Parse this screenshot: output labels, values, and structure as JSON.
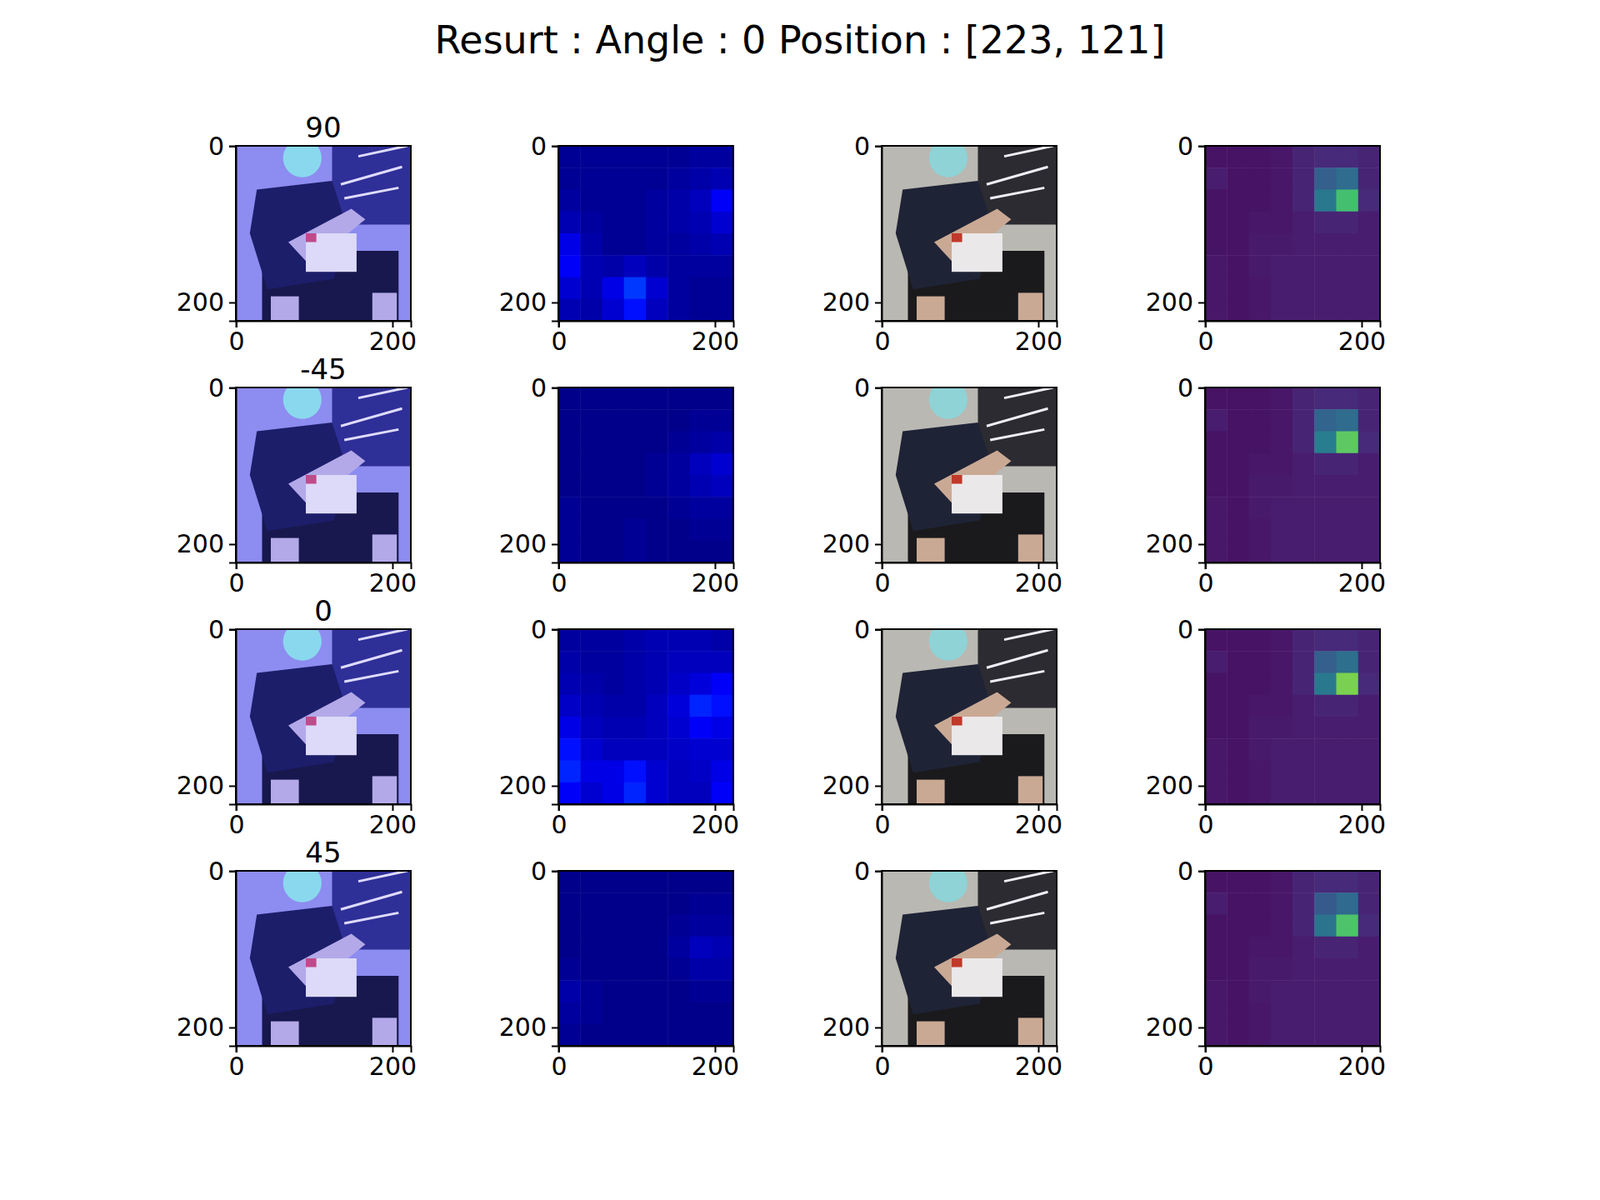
{
  "title": "Resurt : Angle : 0 Position : [223, 121]",
  "chart_data": [
    {
      "type": "image",
      "title": "90",
      "color": "tinted",
      "xlim": [
        -0.5,
        223.5
      ],
      "ylim": [
        223.5,
        -0.5
      ],
      "xticks": [
        0,
        200
      ],
      "yticks": [
        0,
        200
      ]
    },
    {
      "type": "heatmap",
      "color": "jet",
      "zlim": [
        0,
        1
      ],
      "xlim": [
        -0.5,
        223.5
      ],
      "ylim": [
        223.5,
        -0.5
      ],
      "xticks": [
        0,
        200
      ],
      "yticks": [
        0,
        200
      ],
      "cells": [
        [
          0.02,
          0.02,
          0.02,
          0.02,
          0.02,
          0.02,
          0.03,
          0.03
        ],
        [
          0.02,
          0.02,
          0.02,
          0.02,
          0.02,
          0.03,
          0.04,
          0.05
        ],
        [
          0.03,
          0.02,
          0.02,
          0.02,
          0.03,
          0.04,
          0.06,
          0.12
        ],
        [
          0.05,
          0.03,
          0.02,
          0.02,
          0.03,
          0.04,
          0.05,
          0.08
        ],
        [
          0.1,
          0.04,
          0.02,
          0.02,
          0.03,
          0.03,
          0.04,
          0.05
        ],
        [
          0.12,
          0.05,
          0.04,
          0.06,
          0.04,
          0.03,
          0.03,
          0.03
        ],
        [
          0.08,
          0.05,
          0.1,
          0.18,
          0.08,
          0.03,
          0.02,
          0.02
        ],
        [
          0.05,
          0.04,
          0.08,
          0.14,
          0.06,
          0.03,
          0.02,
          0.02
        ]
      ]
    },
    {
      "type": "image",
      "color": "natural",
      "xlim": [
        -0.5,
        223.5
      ],
      "ylim": [
        223.5,
        -0.5
      ],
      "xticks": [
        0,
        200
      ],
      "yticks": [
        0,
        200
      ]
    },
    {
      "type": "heatmap",
      "color": "viridis",
      "zlim": [
        0,
        1
      ],
      "xlim": [
        -0.5,
        223.5
      ],
      "ylim": [
        223.5,
        -0.5
      ],
      "xticks": [
        0,
        200
      ],
      "yticks": [
        0,
        200
      ],
      "cells": [
        [
          0.05,
          0.05,
          0.05,
          0.06,
          0.1,
          0.12,
          0.12,
          0.1
        ],
        [
          0.08,
          0.05,
          0.05,
          0.06,
          0.1,
          0.3,
          0.35,
          0.1
        ],
        [
          0.05,
          0.05,
          0.05,
          0.06,
          0.1,
          0.4,
          0.7,
          0.12
        ],
        [
          0.05,
          0.05,
          0.06,
          0.06,
          0.08,
          0.1,
          0.1,
          0.08
        ],
        [
          0.05,
          0.05,
          0.07,
          0.07,
          0.08,
          0.08,
          0.08,
          0.08
        ],
        [
          0.06,
          0.05,
          0.07,
          0.08,
          0.08,
          0.08,
          0.08,
          0.08
        ],
        [
          0.06,
          0.05,
          0.06,
          0.08,
          0.08,
          0.08,
          0.08,
          0.08
        ],
        [
          0.06,
          0.05,
          0.06,
          0.08,
          0.08,
          0.08,
          0.08,
          0.08
        ]
      ]
    },
    {
      "type": "image",
      "title": "-45",
      "color": "tinted",
      "xlim": [
        -0.5,
        223.5
      ],
      "ylim": [
        223.5,
        -0.5
      ],
      "xticks": [
        0,
        200
      ],
      "yticks": [
        0,
        200
      ]
    },
    {
      "type": "heatmap",
      "color": "jet",
      "zlim": [
        0,
        1
      ],
      "xlim": [
        -0.5,
        223.5
      ],
      "ylim": [
        223.5,
        -0.5
      ],
      "xticks": [
        0,
        200
      ],
      "yticks": [
        0,
        200
      ],
      "cells": [
        [
          0.01,
          0.01,
          0.01,
          0.01,
          0.01,
          0.01,
          0.01,
          0.01
        ],
        [
          0.01,
          0.01,
          0.01,
          0.01,
          0.01,
          0.01,
          0.02,
          0.02
        ],
        [
          0.01,
          0.01,
          0.01,
          0.01,
          0.01,
          0.02,
          0.03,
          0.04
        ],
        [
          0.01,
          0.01,
          0.01,
          0.01,
          0.02,
          0.03,
          0.06,
          0.08
        ],
        [
          0.01,
          0.01,
          0.01,
          0.01,
          0.02,
          0.03,
          0.05,
          0.06
        ],
        [
          0.02,
          0.01,
          0.01,
          0.01,
          0.01,
          0.02,
          0.03,
          0.03
        ],
        [
          0.02,
          0.01,
          0.01,
          0.02,
          0.01,
          0.01,
          0.02,
          0.02
        ],
        [
          0.02,
          0.01,
          0.01,
          0.02,
          0.01,
          0.01,
          0.01,
          0.01
        ]
      ]
    },
    {
      "type": "image",
      "color": "natural",
      "xlim": [
        -0.5,
        223.5
      ],
      "ylim": [
        223.5,
        -0.5
      ],
      "xticks": [
        0,
        200
      ],
      "yticks": [
        0,
        200
      ]
    },
    {
      "type": "heatmap",
      "color": "viridis",
      "zlim": [
        0,
        1
      ],
      "xlim": [
        -0.5,
        223.5
      ],
      "ylim": [
        223.5,
        -0.5
      ],
      "xticks": [
        0,
        200
      ],
      "yticks": [
        0,
        200
      ],
      "cells": [
        [
          0.05,
          0.05,
          0.05,
          0.06,
          0.1,
          0.12,
          0.12,
          0.1
        ],
        [
          0.08,
          0.05,
          0.05,
          0.06,
          0.1,
          0.32,
          0.35,
          0.1
        ],
        [
          0.05,
          0.05,
          0.05,
          0.06,
          0.1,
          0.42,
          0.75,
          0.12
        ],
        [
          0.05,
          0.05,
          0.06,
          0.06,
          0.08,
          0.1,
          0.1,
          0.08
        ],
        [
          0.05,
          0.05,
          0.07,
          0.07,
          0.08,
          0.08,
          0.08,
          0.08
        ],
        [
          0.06,
          0.05,
          0.07,
          0.08,
          0.08,
          0.08,
          0.08,
          0.08
        ],
        [
          0.06,
          0.05,
          0.06,
          0.08,
          0.08,
          0.08,
          0.08,
          0.08
        ],
        [
          0.06,
          0.05,
          0.06,
          0.08,
          0.08,
          0.08,
          0.08,
          0.08
        ]
      ]
    },
    {
      "type": "image",
      "title": "0",
      "color": "tinted",
      "xlim": [
        -0.5,
        223.5
      ],
      "ylim": [
        223.5,
        -0.5
      ],
      "xticks": [
        0,
        200
      ],
      "yticks": [
        0,
        200
      ]
    },
    {
      "type": "heatmap",
      "color": "jet",
      "zlim": [
        0,
        1
      ],
      "xlim": [
        -0.5,
        223.5
      ],
      "ylim": [
        223.5,
        -0.5
      ],
      "xticks": [
        0,
        200
      ],
      "yticks": [
        0,
        200
      ],
      "cells": [
        [
          0.03,
          0.03,
          0.03,
          0.04,
          0.05,
          0.05,
          0.05,
          0.04
        ],
        [
          0.04,
          0.03,
          0.03,
          0.04,
          0.05,
          0.06,
          0.06,
          0.06
        ],
        [
          0.05,
          0.04,
          0.03,
          0.04,
          0.05,
          0.07,
          0.09,
          0.12
        ],
        [
          0.07,
          0.05,
          0.04,
          0.04,
          0.06,
          0.09,
          0.16,
          0.14
        ],
        [
          0.1,
          0.06,
          0.05,
          0.05,
          0.06,
          0.08,
          0.12,
          0.1
        ],
        [
          0.14,
          0.08,
          0.06,
          0.06,
          0.06,
          0.07,
          0.08,
          0.08
        ],
        [
          0.16,
          0.1,
          0.1,
          0.14,
          0.08,
          0.06,
          0.07,
          0.1
        ],
        [
          0.12,
          0.08,
          0.1,
          0.16,
          0.08,
          0.06,
          0.06,
          0.12
        ]
      ]
    },
    {
      "type": "image",
      "color": "natural",
      "xlim": [
        -0.5,
        223.5
      ],
      "ylim": [
        223.5,
        -0.5
      ],
      "xticks": [
        0,
        200
      ],
      "yticks": [
        0,
        200
      ]
    },
    {
      "type": "heatmap",
      "color": "viridis",
      "zlim": [
        0,
        1
      ],
      "xlim": [
        -0.5,
        223.5
      ],
      "ylim": [
        223.5,
        -0.5
      ],
      "xticks": [
        0,
        200
      ],
      "yticks": [
        0,
        200
      ],
      "cells": [
        [
          0.05,
          0.05,
          0.05,
          0.06,
          0.1,
          0.12,
          0.12,
          0.1
        ],
        [
          0.08,
          0.05,
          0.05,
          0.06,
          0.1,
          0.3,
          0.36,
          0.1
        ],
        [
          0.05,
          0.05,
          0.05,
          0.06,
          0.1,
          0.4,
          0.8,
          0.12
        ],
        [
          0.05,
          0.05,
          0.06,
          0.06,
          0.08,
          0.1,
          0.1,
          0.08
        ],
        [
          0.05,
          0.05,
          0.07,
          0.07,
          0.08,
          0.08,
          0.08,
          0.08
        ],
        [
          0.06,
          0.05,
          0.07,
          0.08,
          0.08,
          0.08,
          0.08,
          0.08
        ],
        [
          0.06,
          0.05,
          0.06,
          0.08,
          0.08,
          0.08,
          0.08,
          0.08
        ],
        [
          0.06,
          0.05,
          0.06,
          0.08,
          0.08,
          0.08,
          0.08,
          0.08
        ]
      ]
    },
    {
      "type": "image",
      "title": "45",
      "color": "tinted",
      "xlim": [
        -0.5,
        223.5
      ],
      "ylim": [
        223.5,
        -0.5
      ],
      "xticks": [
        0,
        200
      ],
      "yticks": [
        0,
        200
      ]
    },
    {
      "type": "heatmap",
      "color": "jet",
      "zlim": [
        0,
        1
      ],
      "xlim": [
        -0.5,
        223.5
      ],
      "ylim": [
        223.5,
        -0.5
      ],
      "xticks": [
        0,
        200
      ],
      "yticks": [
        0,
        200
      ],
      "cells": [
        [
          0.01,
          0.01,
          0.01,
          0.01,
          0.01,
          0.01,
          0.01,
          0.01
        ],
        [
          0.01,
          0.01,
          0.01,
          0.01,
          0.01,
          0.01,
          0.02,
          0.02
        ],
        [
          0.01,
          0.01,
          0.01,
          0.01,
          0.01,
          0.02,
          0.03,
          0.03
        ],
        [
          0.01,
          0.01,
          0.01,
          0.01,
          0.01,
          0.03,
          0.06,
          0.05
        ],
        [
          0.02,
          0.01,
          0.01,
          0.01,
          0.01,
          0.02,
          0.04,
          0.04
        ],
        [
          0.04,
          0.02,
          0.01,
          0.01,
          0.01,
          0.01,
          0.02,
          0.02
        ],
        [
          0.03,
          0.02,
          0.01,
          0.01,
          0.01,
          0.01,
          0.01,
          0.01
        ],
        [
          0.02,
          0.01,
          0.01,
          0.01,
          0.01,
          0.01,
          0.01,
          0.01
        ]
      ]
    },
    {
      "type": "image",
      "color": "natural",
      "xlim": [
        -0.5,
        223.5
      ],
      "ylim": [
        223.5,
        -0.5
      ],
      "xticks": [
        0,
        200
      ],
      "yticks": [
        0,
        200
      ]
    },
    {
      "type": "heatmap",
      "color": "viridis",
      "zlim": [
        0,
        1
      ],
      "xlim": [
        -0.5,
        223.5
      ],
      "ylim": [
        223.5,
        -0.5
      ],
      "xticks": [
        0,
        200
      ],
      "yticks": [
        0,
        200
      ],
      "cells": [
        [
          0.05,
          0.05,
          0.05,
          0.06,
          0.1,
          0.12,
          0.12,
          0.1
        ],
        [
          0.08,
          0.05,
          0.05,
          0.06,
          0.1,
          0.28,
          0.34,
          0.1
        ],
        [
          0.05,
          0.05,
          0.05,
          0.06,
          0.1,
          0.38,
          0.72,
          0.12
        ],
        [
          0.05,
          0.05,
          0.06,
          0.06,
          0.08,
          0.1,
          0.1,
          0.08
        ],
        [
          0.05,
          0.05,
          0.07,
          0.07,
          0.08,
          0.08,
          0.08,
          0.08
        ],
        [
          0.06,
          0.05,
          0.07,
          0.08,
          0.08,
          0.08,
          0.08,
          0.08
        ],
        [
          0.06,
          0.05,
          0.06,
          0.08,
          0.08,
          0.08,
          0.08,
          0.08
        ],
        [
          0.06,
          0.05,
          0.06,
          0.08,
          0.08,
          0.08,
          0.08,
          0.08
        ]
      ]
    }
  ]
}
